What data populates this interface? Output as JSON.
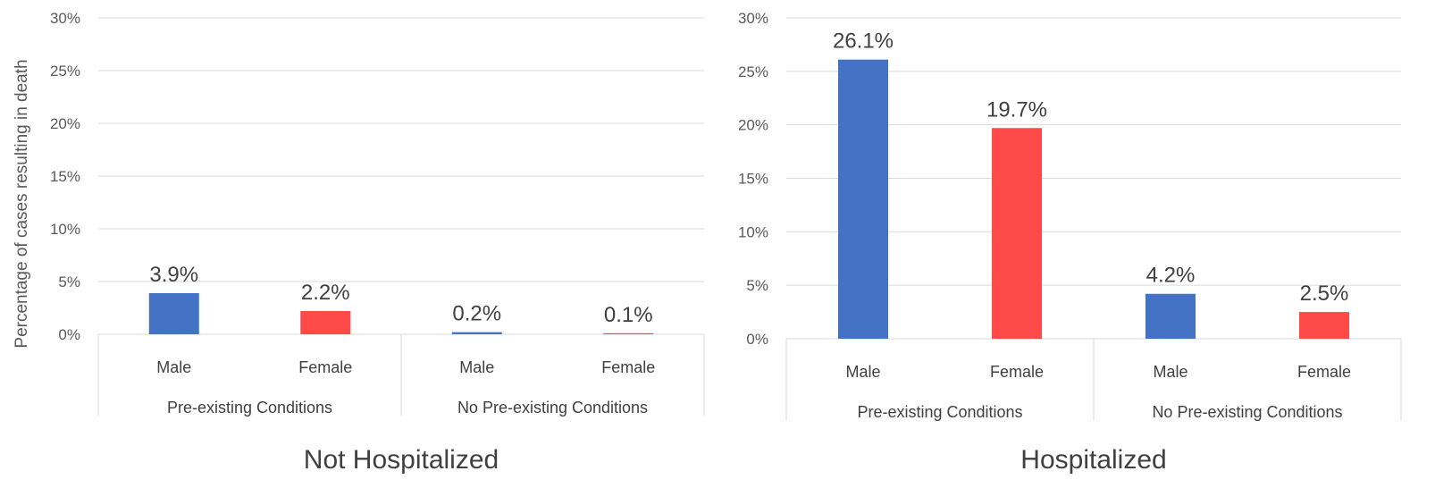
{
  "y_axis_label": "Percentage of cases resulting in death",
  "chart_data": [
    {
      "type": "bar",
      "title": "Not Hospitalized",
      "ylabel": "Percentage of cases resulting in death",
      "ylim": [
        0,
        30
      ],
      "yticks": [
        "0%",
        "5%",
        "10%",
        "15%",
        "20%",
        "25%",
        "30%"
      ],
      "groups": [
        {
          "name": "Pre-existing Conditions",
          "categories": [
            "Male",
            "Female"
          ],
          "values": [
            3.9,
            2.2
          ],
          "labels": [
            "3.9%",
            "2.2%"
          ]
        },
        {
          "name": "No Pre-existing Conditions",
          "categories": [
            "Male",
            "Female"
          ],
          "values": [
            0.2,
            0.1
          ],
          "labels": [
            "0.2%",
            "0.1%"
          ]
        }
      ],
      "colors": {
        "Male": "#4472C4",
        "Female": "#FF4A4A"
      },
      "grid": true,
      "legend": "none"
    },
    {
      "type": "bar",
      "title": "Hospitalized",
      "ylim": [
        0,
        30
      ],
      "yticks": [
        "0%",
        "5%",
        "10%",
        "15%",
        "20%",
        "25%",
        "30%"
      ],
      "groups": [
        {
          "name": "Pre-existing Conditions",
          "categories": [
            "Male",
            "Female"
          ],
          "values": [
            26.1,
            19.7
          ],
          "labels": [
            "26.1%",
            "19.7%"
          ]
        },
        {
          "name": "No Pre-existing Conditions",
          "categories": [
            "Male",
            "Female"
          ],
          "values": [
            4.2,
            2.5
          ],
          "labels": [
            "4.2%",
            "2.5%"
          ]
        }
      ],
      "colors": {
        "Male": "#4472C4",
        "Female": "#FF4A4A"
      },
      "grid": true,
      "legend": "none"
    }
  ]
}
